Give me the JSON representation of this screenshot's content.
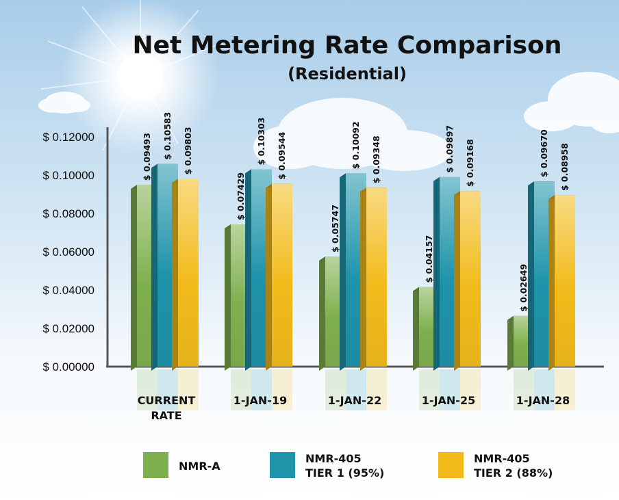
{
  "chart_data": {
    "type": "bar",
    "title": "Net Metering Rate Comparison",
    "subtitle": "(Residential)",
    "categories": [
      [
        "CURRENT",
        "RATE"
      ],
      [
        "1-JAN-19"
      ],
      [
        "1-JAN-22"
      ],
      [
        "1-JAN-25"
      ],
      [
        "1-JAN-28"
      ]
    ],
    "series": [
      {
        "name": "NMR-A",
        "legend_lines": [
          "NMR-A"
        ],
        "color": "#7fb04f",
        "values": [
          0.09493,
          0.07429,
          0.05747,
          0.04157,
          0.02649
        ],
        "labels": [
          "$ 0.09493",
          "$ 0.07429",
          "$ 0.05747",
          "$ 0.04157",
          "$ 0.02649"
        ]
      },
      {
        "name": "NMR-405 TIER 1 (95%)",
        "legend_lines": [
          "NMR-405",
          "TIER 1  (95%)"
        ],
        "color": "#1e93aa",
        "values": [
          0.10583,
          0.10303,
          0.10092,
          0.09897,
          0.0967
        ],
        "labels": [
          "$ 0.10583",
          "$ 0.10303",
          "$ 0.10092",
          "$ 0.09897",
          "$ 0.09670"
        ]
      },
      {
        "name": "NMR-405 TIER 2 (88%)",
        "legend_lines": [
          "NMR-405",
          "TIER 2  (88%)"
        ],
        "color": "#f2bb1b",
        "values": [
          0.09803,
          0.09544,
          0.09348,
          0.09168,
          0.08958
        ],
        "labels": [
          "$ 0.09803",
          "$ 0.09544",
          "$ 0.09348",
          "$ 0.09168",
          "$ 0.08958"
        ]
      }
    ],
    "y_ticks": [
      "$ 0.00000",
      "$ 0.02000",
      "$ 0.04000",
      "$ 0.06000",
      "$ 0.08000",
      "$ 0.10000",
      "$ 0.12000"
    ],
    "ylim": [
      0,
      0.12
    ],
    "grid": false,
    "legend_position": "bottom",
    "style": "3d-bars"
  }
}
